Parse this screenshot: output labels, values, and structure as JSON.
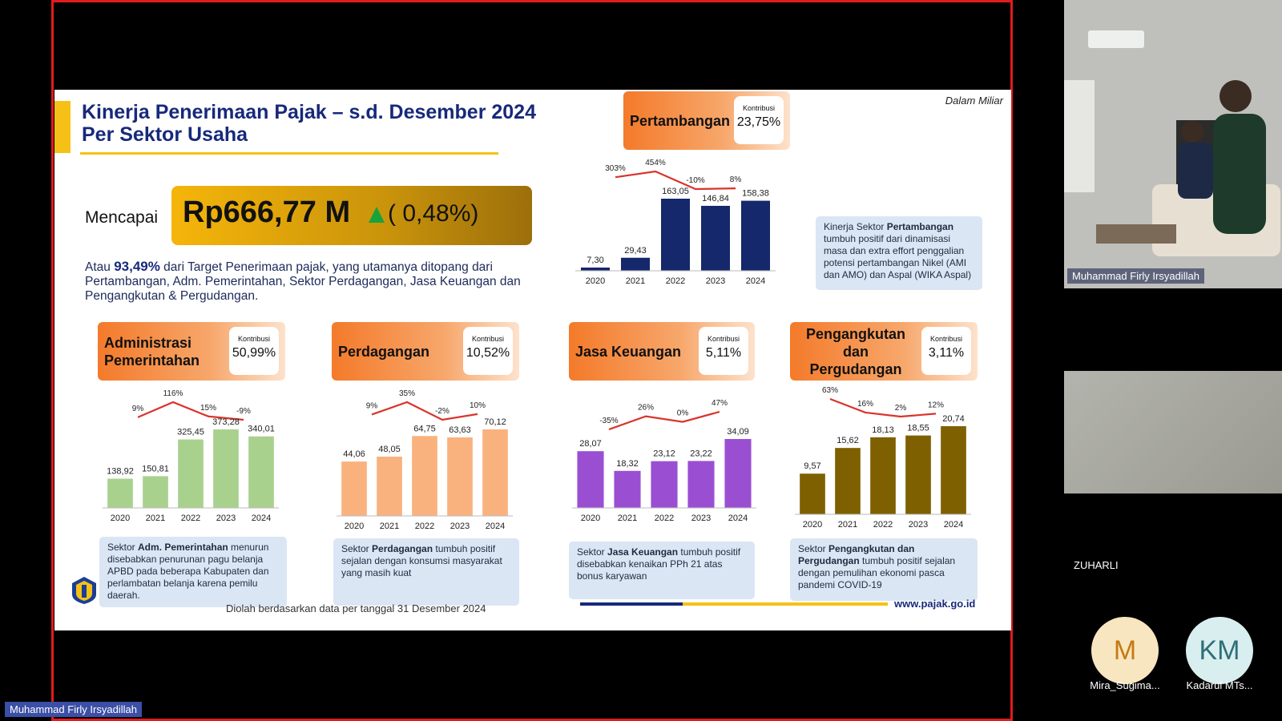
{
  "slide": {
    "title_line1": "Kinerja Penerimaan Pajak – s.d. Desember 2024",
    "title_line2": "Per Sektor Usaha",
    "unit_note": "Dalam Miliar",
    "mencapai_label": "Mencapai",
    "kpi_value": "Rp666,77 M",
    "kpi_change": "( 0,48%)",
    "summary_pre": "Atau ",
    "summary_pct": "93,49%",
    "summary_post": " dari Target Penerimaan pajak, yang utamanya ditopang dari Pertambangan, Adm. Pemerintahan, Sektor Perdagangan, Jasa Keuangan dan Pengangkutan & Pergudangan.",
    "footer_text": "Diolah berdasarkan data per tanggal 31 Desember 2024",
    "footer_url": "www.pajak.go.id",
    "contrib_label": "Kontribusi"
  },
  "sectors": [
    {
      "id": "pertambangan",
      "name": "Pertambangan",
      "contribution": "23,75%",
      "color": "#14286b",
      "years": [
        "2020",
        "2021",
        "2022",
        "2023",
        "2024"
      ],
      "values": [
        7.3,
        29.43,
        163.05,
        146.84,
        158.38
      ],
      "value_labels": [
        "7,30",
        "29,43",
        "163,05",
        "146,84",
        "158,38"
      ],
      "growth_labels": [
        "303%",
        "454%",
        "-10%",
        "8%"
      ],
      "growth_values": [
        303,
        454,
        -10,
        8
      ],
      "note_pre": "Kinerja Sektor ",
      "note_bold": "Pertambangan",
      "note_post": " tumbuh positif dari dinamisasi masa dan extra effort penggalian potensi pertambangan Nikel (AMI dan AMO) dan Aspal (WIKA Aspal)"
    },
    {
      "id": "adm",
      "name": "Administrasi Pemerintahan",
      "contribution": "50,99%",
      "color": "#a9d18e",
      "years": [
        "2020",
        "2021",
        "2022",
        "2023",
        "2024"
      ],
      "values": [
        138.92,
        150.81,
        325.45,
        373.28,
        340.01
      ],
      "value_labels": [
        "138,92",
        "150,81",
        "325,45",
        "373,28",
        "340,01"
      ],
      "growth_labels": [
        "9%",
        "116%",
        "15%",
        "-9%"
      ],
      "growth_values": [
        9,
        116,
        15,
        -9
      ],
      "note_pre": "Sektor ",
      "note_bold": "Adm. Pemerintahan",
      "note_post": " menurun disebabkan penurunan pagu belanja APBD pada beberapa Kabupaten dan perlambatan belanja karena pemilu daerah."
    },
    {
      "id": "perdagangan",
      "name": "Perdagangan",
      "contribution": "10,52%",
      "color": "#f9b27e",
      "years": [
        "2020",
        "2021",
        "2022",
        "2023",
        "2024"
      ],
      "values": [
        44.06,
        48.05,
        64.75,
        63.63,
        70.12
      ],
      "value_labels": [
        "44,06",
        "48,05",
        "64,75",
        "63,63",
        "70,12"
      ],
      "growth_labels": [
        "9%",
        "35%",
        "-2%",
        "10%"
      ],
      "growth_values": [
        9,
        35,
        -2,
        10
      ],
      "note_pre": "Sektor ",
      "note_bold": "Perdagangan",
      "note_post": " tumbuh positif sejalan dengan konsumsi masyarakat yang masih kuat"
    },
    {
      "id": "jasa",
      "name": "Jasa Keuangan",
      "contribution": "5,11%",
      "color": "#9a4fd3",
      "years": [
        "2020",
        "2021",
        "2022",
        "2023",
        "2024"
      ],
      "values": [
        28.07,
        18.32,
        23.12,
        23.22,
        34.09
      ],
      "value_labels": [
        "28,07",
        "18,32",
        "23,12",
        "23,22",
        "34,09"
      ],
      "growth_labels": [
        "-35%",
        "26%",
        "0%",
        "47%"
      ],
      "growth_values": [
        -35,
        26,
        0,
        47
      ],
      "note_pre": "Sektor ",
      "note_bold": "Jasa Keuangan",
      "note_post": " tumbuh positif disebabkan kenaikan PPh 21 atas bonus karyawan"
    },
    {
      "id": "pengangkutan",
      "name": "Pengangkutan dan Pergudangan",
      "contribution": "3,11%",
      "color": "#7f6000",
      "years": [
        "2020",
        "2021",
        "2022",
        "2023",
        "2024"
      ],
      "values": [
        9.57,
        15.62,
        18.13,
        18.55,
        20.74
      ],
      "value_labels": [
        "9,57",
        "15,62",
        "18,13",
        "18,55",
        "20,74"
      ],
      "growth_labels": [
        "63%",
        "16%",
        "2%",
        "12%"
      ],
      "growth_values": [
        63,
        16,
        2,
        12
      ],
      "note_pre": "Sektor ",
      "note_bold": "Pengangkutan dan Pergudangan",
      "note_post": " tumbuh positif sejalan dengan pemulihan ekonomi pasca pandemi COVID-19"
    }
  ],
  "chart_data": [
    {
      "type": "bar",
      "title": "Pertambangan",
      "categories": [
        "2020",
        "2021",
        "2022",
        "2023",
        "2024"
      ],
      "values": [
        7.3,
        29.43,
        163.05,
        146.84,
        158.38
      ],
      "growth": [
        303,
        454,
        -10,
        8
      ]
    },
    {
      "type": "bar",
      "title": "Administrasi Pemerintahan",
      "categories": [
        "2020",
        "2021",
        "2022",
        "2023",
        "2024"
      ],
      "values": [
        138.92,
        150.81,
        325.45,
        373.28,
        340.01
      ],
      "growth": [
        9,
        116,
        15,
        -9
      ]
    },
    {
      "type": "bar",
      "title": "Perdagangan",
      "categories": [
        "2020",
        "2021",
        "2022",
        "2023",
        "2024"
      ],
      "values": [
        44.06,
        48.05,
        64.75,
        63.63,
        70.12
      ],
      "growth": [
        9,
        35,
        -2,
        10
      ]
    },
    {
      "type": "bar",
      "title": "Jasa Keuangan",
      "categories": [
        "2020",
        "2021",
        "2022",
        "2023",
        "2024"
      ],
      "values": [
        28.07,
        18.32,
        23.12,
        23.22,
        34.09
      ],
      "growth": [
        -35,
        26,
        0,
        47
      ]
    },
    {
      "type": "bar",
      "title": "Pengangkutan dan Pergudangan",
      "categories": [
        "2020",
        "2021",
        "2022",
        "2023",
        "2024"
      ],
      "values": [
        9.57,
        15.62,
        18.13,
        18.55,
        20.74
      ],
      "growth": [
        63,
        16,
        2,
        12
      ]
    }
  ],
  "participants": {
    "firly_tile": "Muhammad Firly Irsyadillah",
    "zuharli": "ZUHARLI",
    "mira_initial": "M",
    "mira_name": "Mira_Sugima...",
    "kadarul_initial": "KM",
    "kadarul_name": "Kadarul MTs...",
    "presenter_label": "Muhammad Firly Irsyadillah"
  },
  "colors": {
    "share_border": "#e21b1b",
    "title": "#17297a",
    "accent_yellow": "#f5c116",
    "growth_line": "#d9342b"
  }
}
